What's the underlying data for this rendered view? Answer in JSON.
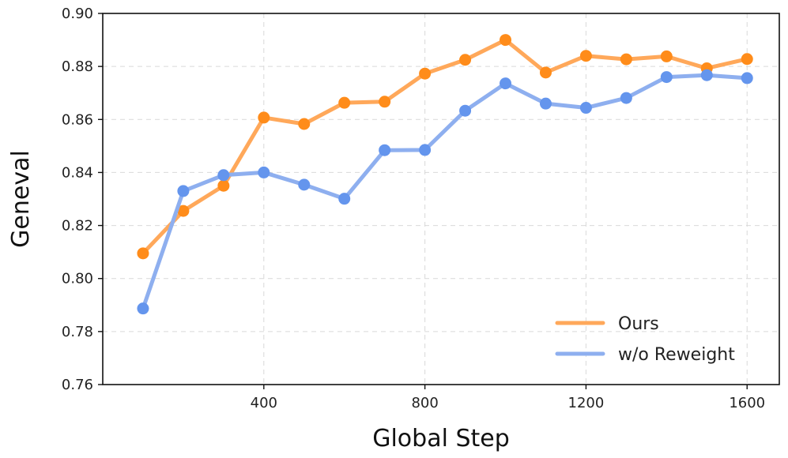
{
  "chart_data": {
    "type": "line",
    "title": "",
    "xlabel": "Global Step",
    "ylabel": "Geneval",
    "xlim": [
      0,
      1680
    ],
    "ylim": [
      0.76,
      0.9
    ],
    "xticks": [
      400,
      800,
      1200,
      1600
    ],
    "yticks": [
      0.76,
      0.78,
      0.8,
      0.82,
      0.84,
      0.86,
      0.88,
      0.9
    ],
    "grid": true,
    "legend_position": "bottom-right",
    "x": [
      100,
      200,
      300,
      400,
      500,
      600,
      700,
      800,
      900,
      1000,
      1100,
      1200,
      1300,
      1400,
      1500,
      1600
    ],
    "series": [
      {
        "name": "Ours",
        "color": "#ff8c1a",
        "line_color": "#ffa85a",
        "values": [
          0.8095,
          0.8255,
          0.835,
          0.8607,
          0.8583,
          0.8663,
          0.8667,
          0.8773,
          0.8825,
          0.89,
          0.8777,
          0.884,
          0.8827,
          0.8838,
          0.8793,
          0.8828
        ]
      },
      {
        "name": "w/o Reweight",
        "color": "#6495ed",
        "line_color": "#8eafef",
        "values": [
          0.7887,
          0.833,
          0.839,
          0.84,
          0.8354,
          0.8301,
          0.8484,
          0.8485,
          0.8633,
          0.8736,
          0.866,
          0.8644,
          0.8681,
          0.876,
          0.8767,
          0.8756
        ]
      }
    ]
  }
}
